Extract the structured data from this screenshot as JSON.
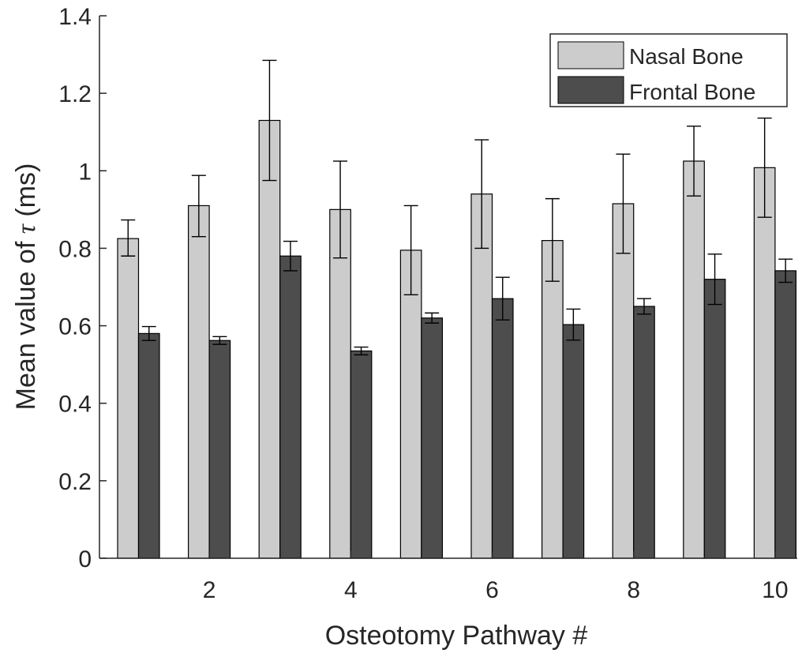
{
  "chart_data": {
    "type": "bar",
    "title": "",
    "xlabel": "Osteotomy Pathway #",
    "ylabel_prefix": "Mean value of ",
    "ylabel_symbol": "τ",
    "ylabel_suffix": " (ms)",
    "categories": [
      1,
      2,
      3,
      4,
      5,
      6,
      7,
      8,
      9,
      10
    ],
    "xticks": [
      "2",
      "4",
      "6",
      "8",
      "10"
    ],
    "xtick_positions": [
      2,
      4,
      6,
      8,
      10
    ],
    "ylim": [
      0,
      1.4
    ],
    "yticks": [
      "0",
      "0.2",
      "0.4",
      "0.6",
      "0.8",
      "1",
      "1.2",
      "1.4"
    ],
    "ytick_values": [
      0,
      0.2,
      0.4,
      0.6,
      0.8,
      1.0,
      1.2,
      1.4
    ],
    "grid": false,
    "legend_position": "top-right",
    "series": [
      {
        "name": "Nasal Bone",
        "color": "#cccccc",
        "values": [
          0.825,
          0.91,
          1.13,
          0.9,
          0.795,
          0.94,
          0.82,
          0.915,
          1.025,
          1.008
        ],
        "err_low": [
          0.045,
          0.08,
          0.155,
          0.125,
          0.115,
          0.14,
          0.105,
          0.128,
          0.09,
          0.128
        ],
        "err_high": [
          0.048,
          0.078,
          0.155,
          0.125,
          0.115,
          0.14,
          0.108,
          0.128,
          0.09,
          0.128
        ]
      },
      {
        "name": "Frontal Bone",
        "color": "#4d4d4d",
        "values": [
          0.58,
          0.562,
          0.78,
          0.535,
          0.62,
          0.67,
          0.603,
          0.65,
          0.72,
          0.742
        ],
        "err_low": [
          0.018,
          0.01,
          0.038,
          0.01,
          0.013,
          0.055,
          0.04,
          0.02,
          0.065,
          0.03
        ],
        "err_high": [
          0.018,
          0.01,
          0.038,
          0.01,
          0.013,
          0.055,
          0.04,
          0.02,
          0.065,
          0.03
        ]
      }
    ]
  }
}
